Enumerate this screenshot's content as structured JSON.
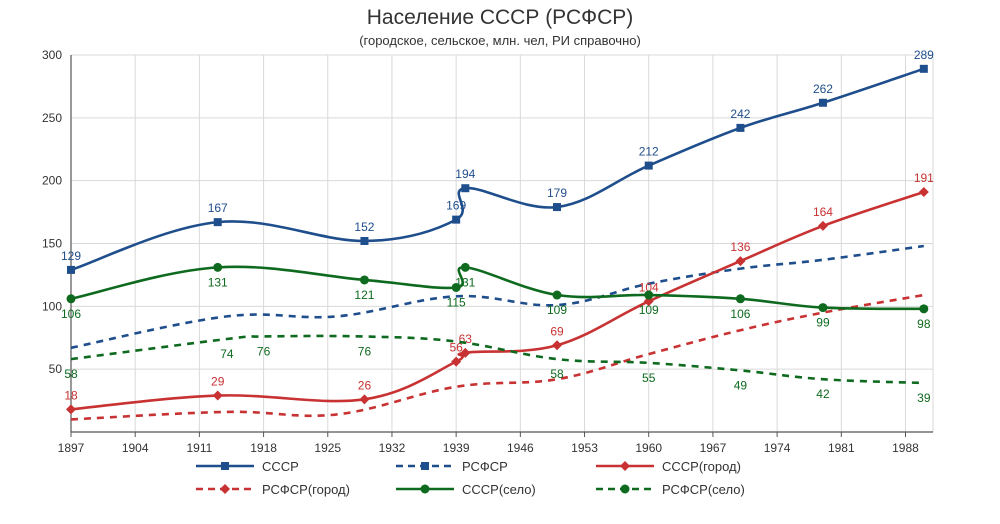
{
  "chart_data": {
    "type": "line",
    "title": "Население СССР (РСФСР)",
    "subtitle": "(городское, сельское, млн. чел, РИ справочно)",
    "xlim": [
      1897,
      1991
    ],
    "ylim": [
      0,
      300
    ],
    "x_ticks": [
      "1897",
      "1904",
      "1911",
      "1918",
      "1925",
      "1932",
      "1939",
      "1946",
      "1953",
      "1960",
      "1967",
      "1974",
      "1981",
      "1988"
    ],
    "y_ticks": [
      "50",
      "100",
      "150",
      "200",
      "250",
      "300"
    ],
    "grid": true,
    "legend_position": "bottom",
    "series": [
      {
        "name": "СССР",
        "color": "#1f4e8c",
        "dashed": false,
        "marker": "square",
        "points": [
          [
            1897,
            129
          ],
          [
            1913,
            167
          ],
          [
            1929,
            152
          ],
          [
            1939,
            169
          ],
          [
            1940,
            194
          ],
          [
            1950,
            179
          ],
          [
            1960,
            212
          ],
          [
            1970,
            242
          ],
          [
            1979,
            262
          ],
          [
            1990,
            289
          ]
        ],
        "labels": [
          "129",
          "167",
          "152",
          "169",
          "194",
          "179",
          "212",
          "242",
          "262",
          "289"
        ]
      },
      {
        "name": "РСФСР",
        "color": "#1f4e8c",
        "dashed": true,
        "marker": "square",
        "points": [
          [
            1897,
            67
          ],
          [
            1914,
            92
          ],
          [
            1926,
            92
          ],
          [
            1939,
            108
          ],
          [
            1950,
            101
          ],
          [
            1960,
            118
          ],
          [
            1970,
            130
          ],
          [
            1979,
            137
          ],
          [
            1990,
            148
          ]
        ],
        "labels": []
      },
      {
        "name": "СССР(город)",
        "color": "#c83232",
        "dashed": false,
        "marker": "diamond",
        "points": [
          [
            1897,
            18
          ],
          [
            1913,
            29
          ],
          [
            1929,
            26
          ],
          [
            1939,
            56
          ],
          [
            1940,
            63
          ],
          [
            1950,
            69
          ],
          [
            1960,
            104
          ],
          [
            1970,
            136
          ],
          [
            1979,
            164
          ],
          [
            1990,
            191
          ]
        ],
        "labels": [
          "18",
          "29",
          "26",
          "56",
          "63",
          "69",
          "104",
          "136",
          "164",
          "191"
        ]
      },
      {
        "name": "РСФСР(город)",
        "color": "#c83232",
        "dashed": true,
        "marker": "diamond",
        "points": [
          [
            1897,
            10
          ],
          [
            1914,
            16
          ],
          [
            1926,
            14
          ],
          [
            1939,
            36
          ],
          [
            1950,
            42
          ],
          [
            1960,
            62
          ],
          [
            1970,
            81
          ],
          [
            1979,
            95
          ],
          [
            1990,
            109
          ]
        ],
        "labels": []
      },
      {
        "name": "СССР(село)",
        "color": "#0e6a1e",
        "dashed": false,
        "marker": "circle",
        "points": [
          [
            1897,
            106
          ],
          [
            1913,
            131
          ],
          [
            1929,
            121
          ],
          [
            1939,
            115
          ],
          [
            1940,
            131
          ],
          [
            1950,
            109
          ],
          [
            1960,
            109
          ],
          [
            1970,
            106
          ],
          [
            1979,
            99
          ],
          [
            1990,
            98
          ]
        ],
        "labels": [
          "106",
          "131",
          "121",
          "115",
          "131",
          "109",
          "109",
          "106",
          "99",
          "98"
        ]
      },
      {
        "name": "РСФСР(село)",
        "color": "#0e6a1e",
        "dashed": true,
        "marker": "circle",
        "points": [
          [
            1897,
            58
          ],
          [
            1914,
            74
          ],
          [
            1918,
            76
          ],
          [
            1929,
            76
          ],
          [
            1939,
            72
          ],
          [
            1950,
            58
          ],
          [
            1960,
            55
          ],
          [
            1970,
            49
          ],
          [
            1979,
            42
          ],
          [
            1990,
            39
          ]
        ],
        "labels": [
          "58",
          "74",
          "76",
          "76",
          "",
          "58",
          "55",
          "49",
          "42",
          "39"
        ]
      }
    ]
  }
}
